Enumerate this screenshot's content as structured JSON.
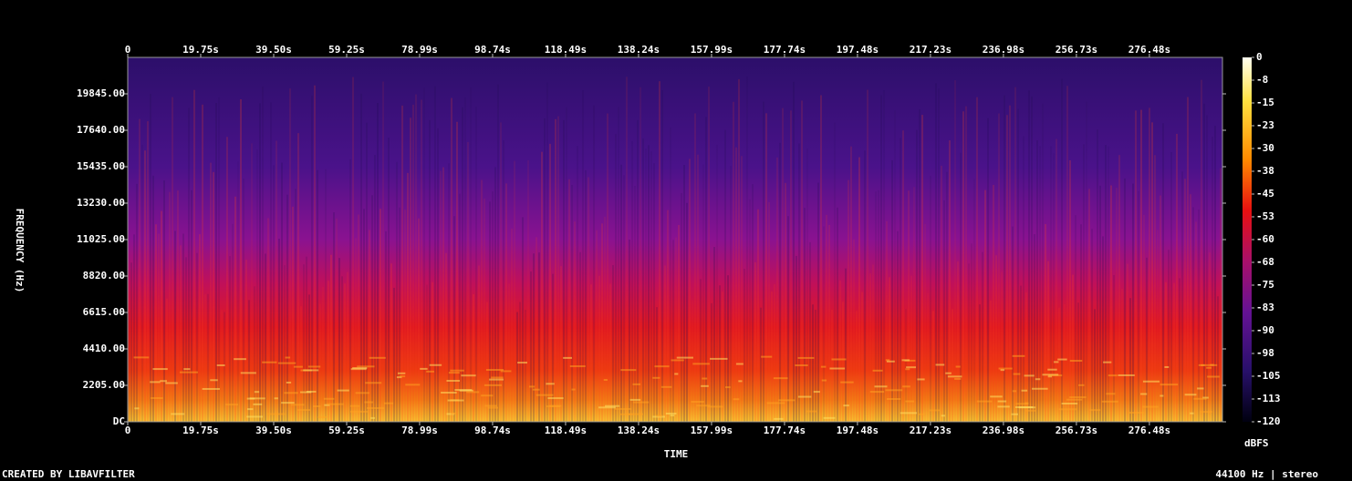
{
  "chart_data": {
    "type": "spectrogram",
    "x_label": "TIME",
    "y_label": "FREQUENCY (Hz)",
    "colorbar_label": "dBFS",
    "footer_left": "CREATED BY LIBAVFILTER",
    "footer_right": "44100 Hz | stereo",
    "xlim": [
      0,
      296.25
    ],
    "xticks": [
      0,
      {
        "value": 19.75,
        "label": "19.75s"
      },
      {
        "value": 39.5,
        "label": "39.50s"
      },
      {
        "value": 59.25,
        "label": "59.25s"
      },
      {
        "value": 78.99,
        "label": "78.99s"
      },
      {
        "value": 98.74,
        "label": "98.74s"
      },
      {
        "value": 118.49,
        "label": "118.49s"
      },
      {
        "value": 138.24,
        "label": "138.24s"
      },
      {
        "value": 157.99,
        "label": "157.99s"
      },
      {
        "value": 177.74,
        "label": "177.74s"
      },
      {
        "value": 197.48,
        "label": "197.48s"
      },
      {
        "value": 217.23,
        "label": "217.23s"
      },
      {
        "value": 236.98,
        "label": "236.98s"
      },
      {
        "value": 256.73,
        "label": "256.73s"
      },
      {
        "value": 276.48,
        "label": "276.48s"
      }
    ],
    "ylim": [
      0,
      22050
    ],
    "yticks": [
      {
        "value": 0,
        "label": "DC"
      },
      {
        "value": 2205,
        "label": "2205.00"
      },
      {
        "value": 4410,
        "label": "4410.00"
      },
      {
        "value": 6615,
        "label": "6615.00"
      },
      {
        "value": 8820,
        "label": "8820.00"
      },
      {
        "value": 11025,
        "label": "11025.00"
      },
      {
        "value": 13230,
        "label": "13230.00"
      },
      {
        "value": 15435,
        "label": "15435.00"
      },
      {
        "value": 17640,
        "label": "17640.00"
      },
      {
        "value": 19845,
        "label": "19845.00"
      }
    ],
    "clim": [
      -120,
      0
    ],
    "cticks": [
      0,
      {
        "value": -7.5,
        "label": "-8"
      },
      -15,
      {
        "value": -22.5,
        "label": "-23"
      },
      -30,
      {
        "value": -37.5,
        "label": "-38"
      },
      -45,
      {
        "value": -52.5,
        "label": "-53"
      },
      -60,
      {
        "value": -67.5,
        "label": "-68"
      },
      -75,
      {
        "value": -82.5,
        "label": "-83"
      },
      -90,
      {
        "value": -97.5,
        "label": "-98"
      },
      -105,
      {
        "value": -112.5,
        "label": "-113"
      },
      -120
    ]
  }
}
